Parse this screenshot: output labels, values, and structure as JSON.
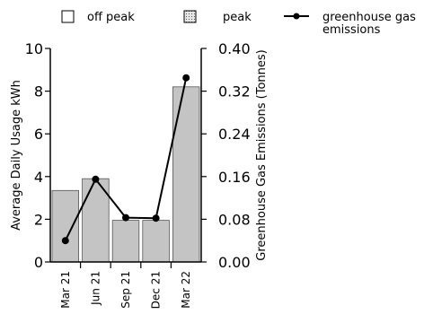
{
  "chart_data": {
    "type": "bar",
    "title": "",
    "categories": [
      "Mar 21",
      "Jun 21",
      "Sep 21",
      "Dec 21",
      "Mar 22"
    ],
    "ylabel": "Average Daily Usage kWh",
    "y2label": "Greenhouse Gas Emissions (Tonnes)",
    "ylim": [
      0,
      10
    ],
    "y2lim": [
      0,
      0.4
    ],
    "yticks": [
      0,
      2,
      4,
      6,
      8,
      10
    ],
    "yticklabels": [
      "0",
      "2",
      "4",
      "6",
      "8",
      "10"
    ],
    "y2ticks": [
      0,
      0.08,
      0.16,
      0.24,
      0.32,
      0.4
    ],
    "y2ticklabels": [
      "0.00",
      "0.08",
      "0.16",
      "0.24",
      "0.32",
      "0.40"
    ],
    "grid": false,
    "legend_position": "top",
    "series": [
      {
        "name": "off peak",
        "type": "bar",
        "axis": "left",
        "color": "#c4c4c4",
        "values": [
          3.35,
          3.9,
          1.95,
          1.95,
          8.2
        ]
      },
      {
        "name": "peak",
        "type": "bar",
        "axis": "left",
        "pattern": "dotted",
        "values": [
          0,
          0,
          0,
          0,
          0
        ]
      },
      {
        "name": "greenhouse gas emissions",
        "type": "line",
        "axis": "right",
        "color": "#000000",
        "values": [
          0.04,
          0.155,
          0.083,
          0.082,
          0.345
        ]
      }
    ],
    "legend": [
      {
        "label": "off peak",
        "swatch": "empty-box"
      },
      {
        "label": "peak",
        "swatch": "dotted-box"
      },
      {
        "label_lines": [
          "greenhouse gas",
          "emissions"
        ],
        "swatch": "line-marker"
      }
    ]
  }
}
